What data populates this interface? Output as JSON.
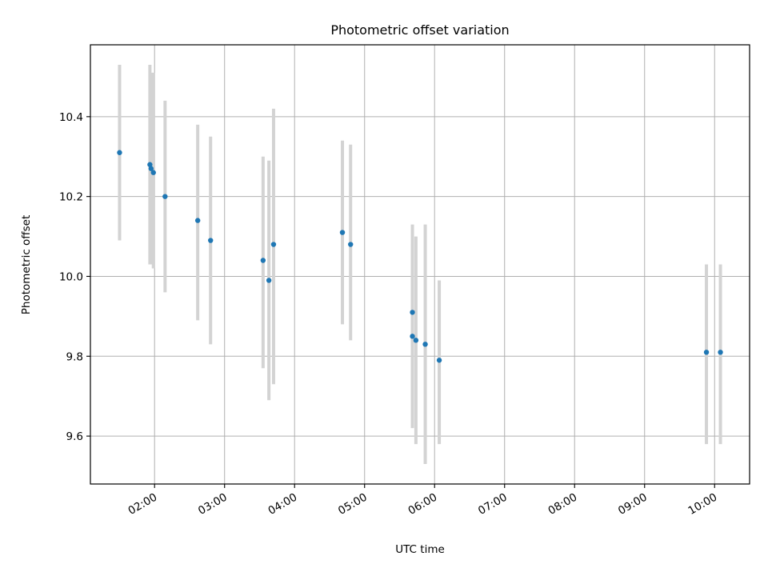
{
  "chart_data": {
    "type": "scatter",
    "title": "Photometric offset variation",
    "xlabel": "UTC time",
    "ylabel": "Photometric offset",
    "x_axis_kind": "time",
    "xlim": [
      "01:05",
      "10:30"
    ],
    "ylim": [
      9.48,
      10.58
    ],
    "xticks": [
      "02:00",
      "03:00",
      "04:00",
      "05:00",
      "06:00",
      "07:00",
      "08:00",
      "09:00",
      "10:00"
    ],
    "yticks": [
      "9.6",
      "9.8",
      "10.0",
      "10.2",
      "10.4"
    ],
    "grid": true,
    "series": [
      {
        "marker_color": "#1f77b4",
        "errorbar_color": "#d3d3d3",
        "points": [
          {
            "x": "01:30",
            "y": 10.31,
            "ylow": 10.09,
            "yhigh": 10.53
          },
          {
            "x": "01:56",
            "y": 10.28,
            "ylow": 10.03,
            "yhigh": 10.53
          },
          {
            "x": "01:57",
            "y": 10.27,
            "ylow": 10.03,
            "yhigh": 10.51
          },
          {
            "x": "01:59",
            "y": 10.26,
            "ylow": 10.02,
            "yhigh": 10.51
          },
          {
            "x": "02:09",
            "y": 10.2,
            "ylow": 9.96,
            "yhigh": 10.44
          },
          {
            "x": "02:37",
            "y": 10.14,
            "ylow": 9.89,
            "yhigh": 10.38
          },
          {
            "x": "02:48",
            "y": 10.09,
            "ylow": 9.83,
            "yhigh": 10.35
          },
          {
            "x": "03:33",
            "y": 10.04,
            "ylow": 9.77,
            "yhigh": 10.3
          },
          {
            "x": "03:38",
            "y": 9.99,
            "ylow": 9.69,
            "yhigh": 10.29
          },
          {
            "x": "03:42",
            "y": 10.08,
            "ylow": 9.73,
            "yhigh": 10.42
          },
          {
            "x": "04:41",
            "y": 10.11,
            "ylow": 9.88,
            "yhigh": 10.34
          },
          {
            "x": "04:48",
            "y": 10.08,
            "ylow": 9.84,
            "yhigh": 10.33
          },
          {
            "x": "05:41",
            "y": 9.91,
            "ylow": 9.69,
            "yhigh": 10.13
          },
          {
            "x": "05:41",
            "y": 9.85,
            "ylow": 9.62,
            "yhigh": 10.08
          },
          {
            "x": "05:44",
            "y": 9.84,
            "ylow": 9.58,
            "yhigh": 10.1
          },
          {
            "x": "05:52",
            "y": 9.83,
            "ylow": 9.53,
            "yhigh": 10.13
          },
          {
            "x": "06:04",
            "y": 9.79,
            "ylow": 9.58,
            "yhigh": 9.99
          },
          {
            "x": "09:53",
            "y": 9.81,
            "ylow": 9.58,
            "yhigh": 10.03
          },
          {
            "x": "10:05",
            "y": 9.81,
            "ylow": 9.58,
            "yhigh": 10.03
          }
        ]
      }
    ]
  }
}
